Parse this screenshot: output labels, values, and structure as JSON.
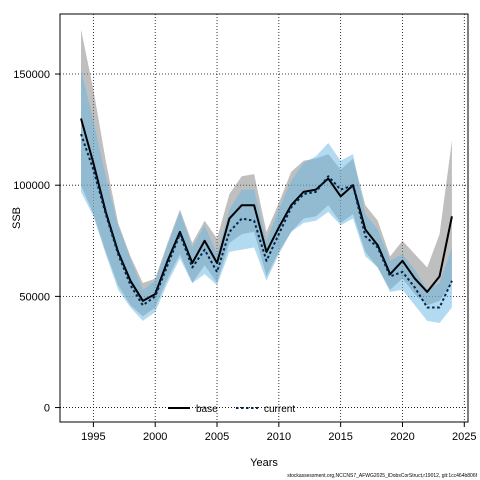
{
  "chart_data": {
    "type": "line",
    "xlabel": "Years",
    "ylabel": "SSB",
    "xlim": [
      1992.3,
      2025.3
    ],
    "ylim": [
      -6500,
      177000
    ],
    "xticks": [
      1995,
      2000,
      2005,
      2010,
      2015,
      2020,
      2025
    ],
    "yticks": [
      0,
      50000,
      100000,
      150000
    ],
    "ytick_labels": [
      "0",
      "50000",
      "100000",
      "150000"
    ],
    "grid": true,
    "legend_position": "bottom-center",
    "x": [
      1994,
      1995,
      1996,
      1997,
      1998,
      1999,
      2000,
      2001,
      2002,
      2003,
      2004,
      2005,
      2006,
      2007,
      2008,
      2009,
      2010,
      2011,
      2012,
      2013,
      2014,
      2015,
      2016,
      2017,
      2018,
      2019,
      2020,
      2021,
      2022,
      2023,
      2024
    ],
    "series": [
      {
        "name": "base",
        "color": "#000000",
        "band_color": "#808080",
        "style": "solid",
        "values": [
          130000,
          110000,
          88000,
          70000,
          57000,
          48000,
          51000,
          66000,
          79000,
          65000,
          75000,
          65000,
          85000,
          91000,
          91000,
          70000,
          81000,
          91000,
          97000,
          98000,
          103000,
          95000,
          100000,
          80000,
          73000,
          60000,
          66000,
          58000,
          52000,
          59000,
          86000
        ],
        "lower": [
          100000,
          87000,
          70000,
          55000,
          46000,
          41000,
          45000,
          58000,
          69000,
          56000,
          64000,
          56000,
          74000,
          78000,
          79000,
          59000,
          70000,
          79000,
          85000,
          86000,
          91000,
          83000,
          87000,
          70000,
          63000,
          53000,
          58000,
          51000,
          46000,
          48000,
          56000
        ],
        "upper": [
          170000,
          143000,
          111000,
          83000,
          68000,
          56000,
          58000,
          74000,
          89000,
          74000,
          84000,
          76000,
          96000,
          104000,
          105000,
          79000,
          92000,
          106000,
          111000,
          112000,
          114000,
          107000,
          112000,
          91000,
          84000,
          68000,
          75000,
          69000,
          63000,
          78000,
          120000
        ]
      },
      {
        "name": "current",
        "color": "#00264d",
        "band_color": "#66b8e6",
        "style": "dotted",
        "values": [
          123000,
          107000,
          87000,
          69000,
          55000,
          46000,
          50000,
          64000,
          78000,
          63000,
          71000,
          61000,
          79000,
          85000,
          84000,
          66000,
          78000,
          90000,
          96000,
          97000,
          104000,
          98000,
          100000,
          77000,
          72000,
          59000,
          61000,
          54000,
          45000,
          45000,
          57000
        ],
        "lower": [
          97000,
          86000,
          69000,
          53000,
          45000,
          39000,
          43000,
          56000,
          67000,
          56000,
          60000,
          55000,
          70000,
          71000,
          72000,
          57000,
          69000,
          79000,
          83000,
          84000,
          88000,
          82000,
          85000,
          68000,
          63000,
          52000,
          53000,
          46000,
          39000,
          38000,
          45000
        ],
        "upper": [
          152000,
          129000,
          104000,
          82000,
          67000,
          53000,
          57000,
          73000,
          88000,
          72000,
          82000,
          69000,
          89000,
          98000,
          98000,
          75000,
          89000,
          102000,
          110000,
          113000,
          119000,
          111000,
          114000,
          87000,
          80000,
          66000,
          69000,
          62000,
          53000,
          56000,
          72000
        ]
      }
    ]
  },
  "footer": "stockassessment.org,NCCNS7_AFWG2025_IDobsCorStruct,r19012, git:1cc464b806f"
}
